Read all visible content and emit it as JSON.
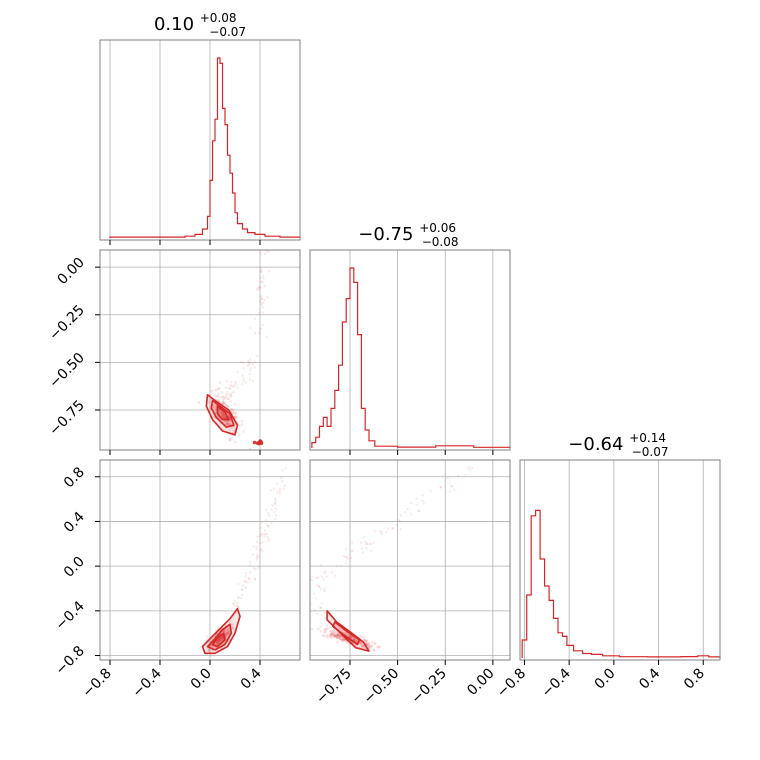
{
  "chart_data": {
    "type": "corner",
    "color": "#d62728",
    "gridColor": "#b0b0b0",
    "frameColor": "#808080",
    "parameters": [
      {
        "median": 0.1,
        "plus": 0.08,
        "minus": 0.07,
        "title": "0.10",
        "sup": "+0.08",
        "sub": "−0.07",
        "range": [
          -0.88,
          0.72
        ],
        "ticks": [
          -0.8,
          -0.4,
          0.0,
          0.4
        ],
        "tick_labels": [
          "−0.8",
          "−0.4",
          "0.0",
          "0.4"
        ]
      },
      {
        "median": -0.75,
        "plus": 0.06,
        "minus": 0.08,
        "title": "−0.75",
        "sup": "+0.06",
        "sub": "−0.08",
        "range": [
          -0.96,
          0.09
        ],
        "ticks": [
          -0.75,
          -0.5,
          -0.25,
          0.0
        ],
        "tick_labels": [
          "−0.75",
          "−0.50",
          "−0.25",
          "0.00"
        ]
      },
      {
        "median": -0.64,
        "plus": 0.14,
        "minus": 0.07,
        "title": "−0.64",
        "sup": "+0.14",
        "sub": "−0.07",
        "range": [
          -0.84,
          0.95
        ],
        "ticks": [
          -0.8,
          -0.4,
          0.0,
          0.4,
          0.8
        ],
        "tick_labels": [
          "−0.8",
          "−0.4",
          "0.0",
          "0.4",
          "0.8"
        ]
      }
    ],
    "histograms": [
      {
        "param": 0,
        "edges": [
          -0.8,
          0.72
        ],
        "bins": [
          [
            -0.8,
            -0.2,
            0.005
          ],
          [
            -0.2,
            -0.12,
            0.01
          ],
          [
            -0.12,
            -0.06,
            0.02
          ],
          [
            -0.06,
            -0.02,
            0.05
          ],
          [
            -0.02,
            0.0,
            0.12
          ],
          [
            0.0,
            0.02,
            0.32
          ],
          [
            0.02,
            0.04,
            0.54
          ],
          [
            0.04,
            0.06,
            0.66
          ],
          [
            0.06,
            0.08,
            1.0
          ],
          [
            0.08,
            0.1,
            0.97
          ],
          [
            0.1,
            0.12,
            0.72
          ],
          [
            0.12,
            0.14,
            0.63
          ],
          [
            0.14,
            0.16,
            0.46
          ],
          [
            0.16,
            0.18,
            0.36
          ],
          [
            0.18,
            0.2,
            0.25
          ],
          [
            0.2,
            0.22,
            0.14
          ],
          [
            0.22,
            0.26,
            0.08
          ],
          [
            0.26,
            0.3,
            0.05
          ],
          [
            0.3,
            0.36,
            0.03
          ],
          [
            0.36,
            0.44,
            0.02
          ],
          [
            0.44,
            0.56,
            0.01
          ],
          [
            0.56,
            0.72,
            0.005
          ]
        ]
      },
      {
        "param": 1,
        "bins": [
          [
            -0.95,
            -0.93,
            0.03
          ],
          [
            -0.93,
            -0.91,
            0.06
          ],
          [
            -0.91,
            -0.89,
            0.12
          ],
          [
            -0.89,
            -0.87,
            0.17
          ],
          [
            -0.87,
            -0.85,
            0.12
          ],
          [
            -0.85,
            -0.83,
            0.22
          ],
          [
            -0.83,
            -0.81,
            0.32
          ],
          [
            -0.81,
            -0.79,
            0.46
          ],
          [
            -0.79,
            -0.77,
            0.7
          ],
          [
            -0.77,
            -0.75,
            0.83
          ],
          [
            -0.75,
            -0.73,
            1.0
          ],
          [
            -0.73,
            -0.71,
            0.92
          ],
          [
            -0.71,
            -0.69,
            0.63
          ],
          [
            -0.69,
            -0.67,
            0.22
          ],
          [
            -0.67,
            -0.65,
            0.1
          ],
          [
            -0.65,
            -0.62,
            0.04
          ],
          [
            -0.62,
            -0.5,
            0.01
          ],
          [
            -0.5,
            -0.3,
            0.005
          ],
          [
            -0.3,
            -0.1,
            0.012
          ],
          [
            -0.1,
            0.09,
            0.004
          ]
        ]
      },
      {
        "param": 2,
        "bins": [
          [
            -0.82,
            -0.78,
            0.1
          ],
          [
            -0.78,
            -0.74,
            0.35
          ],
          [
            -0.74,
            -0.7,
            0.79
          ],
          [
            -0.7,
            -0.66,
            0.82
          ],
          [
            -0.66,
            -0.62,
            0.55
          ],
          [
            -0.62,
            -0.58,
            0.4
          ],
          [
            -0.58,
            -0.54,
            0.32
          ],
          [
            -0.54,
            -0.5,
            0.22
          ],
          [
            -0.5,
            -0.46,
            0.14
          ],
          [
            -0.46,
            -0.42,
            0.12
          ],
          [
            -0.42,
            -0.36,
            0.07
          ],
          [
            -0.36,
            -0.28,
            0.04
          ],
          [
            -0.28,
            -0.2,
            0.025
          ],
          [
            -0.2,
            -0.1,
            0.02
          ],
          [
            -0.1,
            0.05,
            0.012
          ],
          [
            0.05,
            0.3,
            0.007
          ],
          [
            0.3,
            0.6,
            0.006
          ],
          [
            0.6,
            0.75,
            0.008
          ],
          [
            0.75,
            0.85,
            0.012
          ],
          [
            0.85,
            0.95,
            0.006
          ]
        ]
      }
    ],
    "scatter_panels": [
      {
        "x_param": 0,
        "y_param": 1,
        "center": [
          0.12,
          -0.77
        ],
        "direction": [
          1,
          -1
        ],
        "spread": [
          0.07,
          0.03
        ],
        "tail": [
          [
            0.1,
            -0.7
          ],
          [
            0.35,
            -0.5
          ],
          [
            0.45,
            0.1
          ]
        ],
        "contours": [
          [
            [
              -0.02,
              -0.67
            ],
            [
              0.06,
              -0.71
            ],
            [
              0.15,
              -0.75
            ],
            [
              0.22,
              -0.83
            ],
            [
              0.2,
              -0.88
            ],
            [
              0.1,
              -0.86
            ],
            [
              0.02,
              -0.8
            ],
            [
              -0.03,
              -0.73
            ]
          ],
          [
            [
              0.02,
              -0.7
            ],
            [
              0.08,
              -0.73
            ],
            [
              0.16,
              -0.77
            ],
            [
              0.19,
              -0.83
            ],
            [
              0.13,
              -0.84
            ],
            [
              0.05,
              -0.79
            ],
            [
              0.01,
              -0.74
            ]
          ],
          [
            [
              0.06,
              -0.73
            ],
            [
              0.12,
              -0.76
            ],
            [
              0.15,
              -0.8
            ],
            [
              0.1,
              -0.8
            ],
            [
              0.06,
              -0.77
            ]
          ]
        ],
        "hotspot": [
          0.38,
          -0.92
        ]
      },
      {
        "x_param": 0,
        "y_param": 2,
        "center": [
          0.08,
          -0.64
        ],
        "direction": [
          1,
          1.2
        ],
        "spread": [
          0.06,
          0.03
        ],
        "tail": [
          [
            0.2,
            -0.4
          ],
          [
            0.4,
            0.2
          ],
          [
            0.6,
            0.85
          ]
        ],
        "contours": [
          [
            [
              -0.06,
              -0.72
            ],
            [
              0.0,
              -0.65
            ],
            [
              0.08,
              -0.56
            ],
            [
              0.16,
              -0.47
            ],
            [
              0.22,
              -0.38
            ],
            [
              0.24,
              -0.45
            ],
            [
              0.2,
              -0.6
            ],
            [
              0.14,
              -0.72
            ],
            [
              0.04,
              -0.78
            ],
            [
              -0.04,
              -0.78
            ]
          ],
          [
            [
              -0.02,
              -0.72
            ],
            [
              0.04,
              -0.65
            ],
            [
              0.1,
              -0.57
            ],
            [
              0.16,
              -0.52
            ],
            [
              0.17,
              -0.6
            ],
            [
              0.12,
              -0.7
            ],
            [
              0.04,
              -0.75
            ]
          ],
          [
            [
              0.02,
              -0.7
            ],
            [
              0.06,
              -0.64
            ],
            [
              0.11,
              -0.6
            ],
            [
              0.12,
              -0.66
            ],
            [
              0.06,
              -0.72
            ]
          ]
        ]
      },
      {
        "x_param": 1,
        "y_param": 2,
        "center": [
          -0.76,
          -0.65
        ],
        "direction": [
          1,
          -0.6
        ],
        "spread": [
          0.08,
          0.02
        ],
        "tail": [
          [
            -0.9,
            -0.5
          ],
          [
            -0.92,
            -0.1
          ],
          [
            -0.5,
            0.4
          ],
          [
            -0.1,
            0.9
          ]
        ],
        "contours": [
          [
            [
              -0.87,
              -0.4
            ],
            [
              -0.82,
              -0.5
            ],
            [
              -0.74,
              -0.6
            ],
            [
              -0.68,
              -0.68
            ],
            [
              -0.65,
              -0.76
            ],
            [
              -0.72,
              -0.73
            ],
            [
              -0.8,
              -0.6
            ],
            [
              -0.87,
              -0.48
            ]
          ],
          [
            [
              -0.83,
              -0.5
            ],
            [
              -0.77,
              -0.58
            ],
            [
              -0.7,
              -0.66
            ],
            [
              -0.71,
              -0.7
            ],
            [
              -0.78,
              -0.62
            ],
            [
              -0.84,
              -0.54
            ]
          ]
        ]
      }
    ]
  }
}
